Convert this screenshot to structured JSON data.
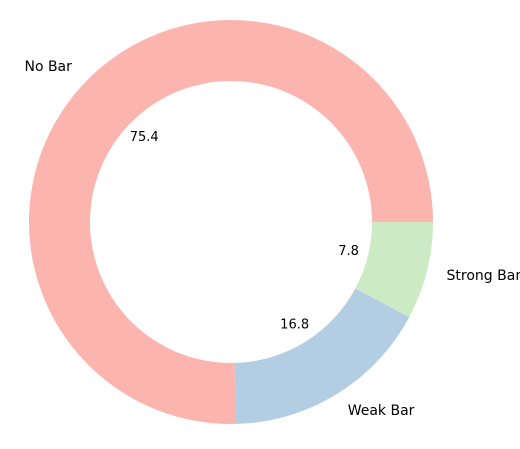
{
  "chart_data": {
    "type": "pie",
    "variant": "donut",
    "title": "",
    "categories": [
      "No Bar",
      "Weak Bar",
      "Strong Bar"
    ],
    "values": [
      75.4,
      16.8,
      7.8
    ],
    "value_labels": [
      "75.4",
      "16.8",
      "7.8"
    ],
    "colors": [
      "#fbb4ae",
      "#b3cde3",
      "#ccebc5"
    ],
    "start": "3 o'clock",
    "direction": "counterclockwise",
    "legend": "none"
  }
}
